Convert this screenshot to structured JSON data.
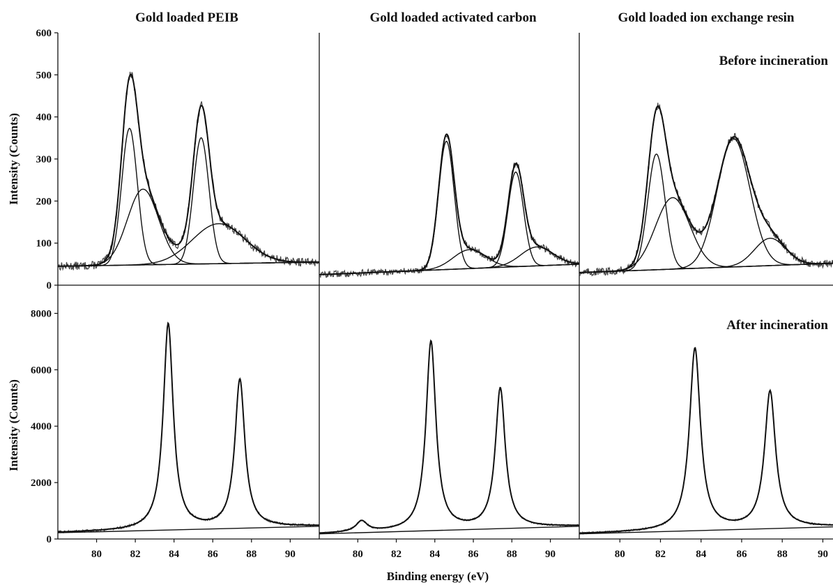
{
  "figure": {
    "column_titles": [
      "Gold loaded PEIB",
      "Gold loaded activated carbon",
      "Gold loaded ion exchange resin"
    ],
    "row_labels": [
      "Before incineration",
      "After incineration"
    ],
    "y_label": "Intensity (Counts)",
    "x_label": "Binding energy (eV)"
  },
  "chart_data": [
    {
      "type": "line",
      "row": "Before incineration",
      "title": "Gold loaded PEIB",
      "xlabel": "Binding energy (eV)",
      "ylabel": "Intensity (Counts)",
      "xlim": [
        78,
        91.5
      ],
      "ylim": [
        0,
        600
      ],
      "yticks": [
        0,
        100,
        200,
        300,
        400,
        500,
        600
      ],
      "xticks": [
        80,
        82,
        84,
        86,
        88,
        90
      ],
      "background": {
        "x": [
          78,
          91.5
        ],
        "y": [
          45,
          55
        ]
      },
      "components": [
        {
          "center": 81.7,
          "height": 325,
          "fwhm": 0.95
        },
        {
          "center": 82.4,
          "height": 180,
          "fwhm": 1.9
        },
        {
          "center": 85.4,
          "height": 300,
          "fwhm": 0.95
        },
        {
          "center": 86.3,
          "height": 95,
          "fwhm": 3.2
        }
      ],
      "noise": 10
    },
    {
      "type": "line",
      "row": "Before incineration",
      "title": "Gold loaded activated carbon",
      "xlabel": "Binding energy (eV)",
      "ylabel": "Intensity (Counts)",
      "xlim": [
        78,
        91.5
      ],
      "ylim": [
        0,
        600
      ],
      "xticks": [
        80,
        82,
        84,
        86,
        88,
        90
      ],
      "background": {
        "x": [
          78,
          91.5
        ],
        "y": [
          25,
          50
        ]
      },
      "components": [
        {
          "center": 84.6,
          "height": 305,
          "fwhm": 0.95
        },
        {
          "center": 85.8,
          "height": 45,
          "fwhm": 2.0
        },
        {
          "center": 88.2,
          "height": 225,
          "fwhm": 0.95
        },
        {
          "center": 89.3,
          "height": 45,
          "fwhm": 2.0
        }
      ],
      "noise": 8
    },
    {
      "type": "line",
      "row": "Before incineration",
      "title": "Gold loaded ion exchange resin",
      "xlabel": "Binding energy (eV)",
      "ylabel": "Intensity (Counts)",
      "xlim": [
        78,
        90.5
      ],
      "ylim": [
        0,
        600
      ],
      "xticks": [
        80,
        82,
        84,
        86,
        88,
        90
      ],
      "background": {
        "x": [
          78,
          90.5
        ],
        "y": [
          30,
          52
        ]
      },
      "components": [
        {
          "center": 81.8,
          "height": 275,
          "fwhm": 1.0
        },
        {
          "center": 82.6,
          "height": 170,
          "fwhm": 2.0
        },
        {
          "center": 85.6,
          "height": 305,
          "fwhm": 1.9
        },
        {
          "center": 87.4,
          "height": 65,
          "fwhm": 1.8
        }
      ],
      "noise": 9
    },
    {
      "type": "line",
      "row": "After incineration",
      "title": "Gold loaded PEIB",
      "xlabel": "Binding energy (eV)",
      "ylabel": "Intensity (Counts)",
      "xlim": [
        78,
        91.5
      ],
      "ylim": [
        0,
        9000
      ],
      "yticks": [
        0,
        2000,
        4000,
        6000,
        8000
      ],
      "xticks": [
        80,
        82,
        84,
        86,
        88,
        90
      ],
      "background": {
        "x": [
          78,
          91.5
        ],
        "y": [
          220,
          450
        ]
      },
      "components": [
        {
          "center": 83.7,
          "height": 7300,
          "fwhm": 0.62
        },
        {
          "center": 87.4,
          "height": 5250,
          "fwhm": 0.62
        }
      ],
      "noise": 40
    },
    {
      "type": "line",
      "row": "After incineration",
      "title": "Gold loaded activated carbon",
      "xlabel": "Binding energy (eV)",
      "ylabel": "Intensity (Counts)",
      "xlim": [
        78,
        91.5
      ],
      "ylim": [
        0,
        9000
      ],
      "xticks": [
        80,
        82,
        84,
        86,
        88,
        90
      ],
      "background": {
        "x": [
          78,
          91.5
        ],
        "y": [
          180,
          450
        ]
      },
      "components": [
        {
          "center": 80.2,
          "height": 380,
          "fwhm": 0.7
        },
        {
          "center": 83.8,
          "height": 6700,
          "fwhm": 0.62
        },
        {
          "center": 87.4,
          "height": 4950,
          "fwhm": 0.62
        }
      ],
      "noise": 30
    },
    {
      "type": "line",
      "row": "After incineration",
      "title": "Gold loaded ion exchange resin",
      "xlabel": "Binding energy (eV)",
      "ylabel": "Intensity (Counts)",
      "xlim": [
        78,
        90.5
      ],
      "ylim": [
        0,
        9000
      ],
      "xticks": [
        80,
        82,
        84,
        86,
        88,
        90
      ],
      "background": {
        "x": [
          78,
          90.5
        ],
        "y": [
          180,
          430
        ]
      },
      "components": [
        {
          "center": 83.7,
          "height": 6450,
          "fwhm": 0.65
        },
        {
          "center": 87.4,
          "height": 4850,
          "fwhm": 0.65
        }
      ],
      "noise": 30
    }
  ]
}
